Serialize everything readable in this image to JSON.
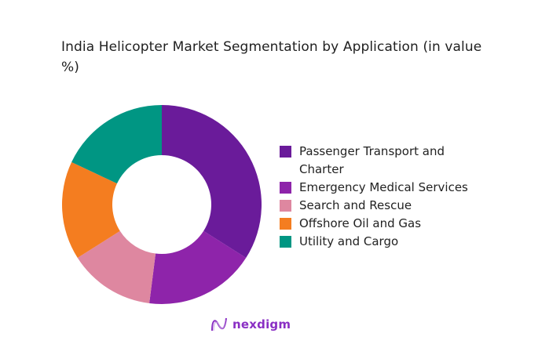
{
  "chart_data": {
    "type": "pie",
    "subtype": "donut",
    "title": "India Helicopter Market Segmentation by Application (in value %)",
    "categories": [
      "Passenger Transport and Charter",
      "Emergency Medical Services",
      "Search and Rescue",
      "Offshore Oil and Gas",
      "Utility and Cargo"
    ],
    "values": [
      34,
      18,
      14,
      16,
      18
    ],
    "colors": [
      "#6a1b9a",
      "#8e24aa",
      "#de87a0",
      "#f47d20",
      "#009683"
    ],
    "legend_position": "right",
    "unit": "%"
  },
  "header": {
    "title": "India Helicopter Market Segmentation by Application (in value %)"
  },
  "legend": {
    "items": [
      {
        "label": "Passenger Transport and Charter",
        "color": "#6a1b9a"
      },
      {
        "label": "Emergency Medical Services",
        "color": "#8e24aa"
      },
      {
        "label": "Search and Rescue",
        "color": "#de87a0"
      },
      {
        "label": "Offshore Oil and Gas",
        "color": "#f47d20"
      },
      {
        "label": "Utility and Cargo",
        "color": "#009683"
      }
    ]
  },
  "footer": {
    "logo_text": "nexdigm",
    "logo_icon": "nexdigm-wave-icon",
    "brand_color": "#8a2fc4"
  }
}
